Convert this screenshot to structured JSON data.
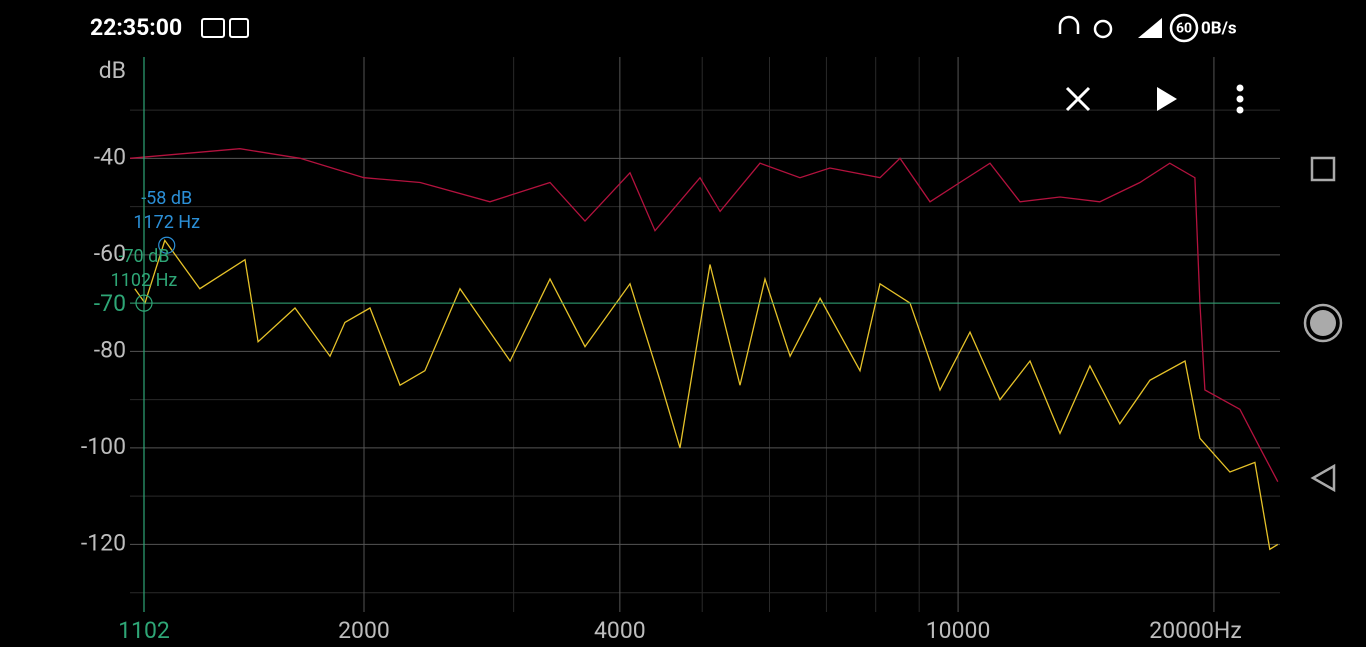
{
  "status_bar": {
    "time": "22:35:00",
    "battery": "60",
    "speed": "0B/s"
  },
  "chart_data": {
    "type": "line",
    "y_unit": "dB",
    "x_unit": "Hz",
    "xlog": true,
    "xlim": [
      1061,
      23920
    ],
    "ylim": [
      -134,
      -19
    ],
    "xticks": [
      2000,
      4000,
      10000,
      20000
    ],
    "yticks": [
      -40,
      -60,
      -80,
      -100,
      -120
    ],
    "xminor": [
      3000,
      5000,
      6000,
      7000,
      8000,
      9000
    ],
    "yminor": [
      -30,
      -50,
      -70,
      -90,
      -110,
      -130
    ],
    "grid": true,
    "series": [
      {
        "color": "#b3123e",
        "x": [
          1061,
          1429,
          1682,
          2000,
          2329,
          2813,
          3310,
          3640,
          4112,
          4400,
          4970,
          5248,
          5848,
          6516,
          7066,
          8093,
          8544,
          9268,
          10050,
          10904,
          11826,
          13180,
          14680,
          16366,
          17748,
          18994,
          19254,
          19518,
          21460,
          22660,
          23780
        ],
        "values": [
          -40,
          -38,
          -40,
          -44,
          -45,
          -49,
          -45,
          -53,
          -43,
          -55,
          -44,
          -51,
          -41,
          -44,
          -42,
          -44,
          -40,
          -49,
          -45,
          -41,
          -49,
          -48,
          -49,
          -45,
          -41,
          -44,
          -70,
          -88,
          -92,
          -100,
          -107
        ]
      },
      {
        "color": "#e6c229",
        "x": [
          1075,
          1105,
          1166,
          1282,
          1449,
          1501,
          1659,
          1824,
          1899,
          2033,
          2205,
          2359,
          2594,
          2971,
          3310,
          3640,
          4112,
          4459,
          4708,
          5106,
          5539,
          5927,
          6344,
          6881,
          7666,
          8093,
          8778,
          9522,
          10328,
          11202,
          12150,
          13180,
          14292,
          15500,
          16816,
          18490,
          19254,
          20886,
          22346,
          23270,
          23780
        ],
        "values": [
          -67,
          -70,
          -57,
          -67,
          -61,
          -78,
          -71,
          -81,
          -74,
          -71,
          -87,
          -84,
          -67,
          -82,
          -65,
          -79,
          -66,
          -86,
          -100,
          -62,
          -87,
          -65,
          -81,
          -69,
          -84,
          -66,
          -70,
          -88,
          -76,
          -90,
          -82,
          -97,
          -83,
          -95,
          -86,
          -82,
          -98,
          -105,
          -103,
          -121,
          -120
        ]
      }
    ],
    "cursors": [
      {
        "db": -58,
        "hz": 1172,
        "db_label": "-58 dB",
        "hz_label": "1172 Hz",
        "color": "#2b8fd6"
      },
      {
        "db": -70,
        "hz": 1102,
        "db_label": "-70 dB",
        "hz_label": "1102 Hz",
        "color": "#2ea676"
      }
    ]
  }
}
